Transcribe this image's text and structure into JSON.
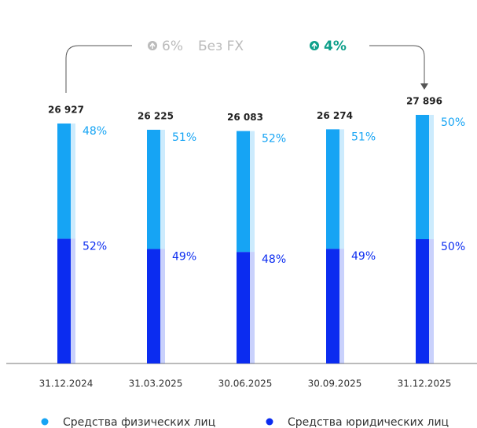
{
  "chart_data": {
    "type": "stacked_bar",
    "categories": [
      "31.12.2024",
      "31.03.2025",
      "30.06.2025",
      "30.09.2025",
      "31.12.2025"
    ],
    "totals": [
      {
        "value": 26927,
        "label": "26 927"
      },
      {
        "value": 26225,
        "label": "26 225"
      },
      {
        "value": 26083,
        "label": "26 083"
      },
      {
        "value": 26274,
        "label": "26 274"
      },
      {
        "value": 27896,
        "label": "27 896"
      }
    ],
    "series": [
      {
        "name": "Средства юридических лиц",
        "color": "#0b2cf0",
        "values": [
          52,
          49,
          48,
          49,
          50
        ],
        "value_labels": [
          "52%",
          "49%",
          "48%",
          "49%",
          "50%"
        ]
      },
      {
        "name": "Средства физических лиц",
        "color": "#16a4f4",
        "values": [
          48,
          51,
          52,
          51,
          50
        ],
        "value_labels": [
          "48%",
          "51%",
          "52%",
          "51%",
          "50%"
        ]
      }
    ],
    "annotations": [
      {
        "text": "6%"
      },
      {
        "text": "Без FX"
      },
      {
        "text": "4%"
      }
    ]
  }
}
